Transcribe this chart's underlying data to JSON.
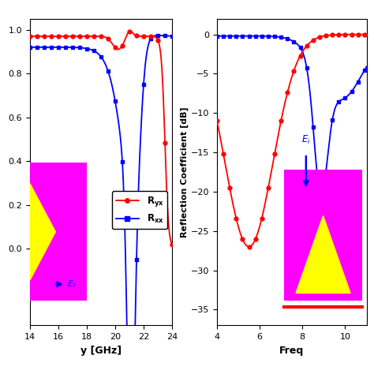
{
  "left_panel": {
    "freq_range": [
      14,
      24
    ],
    "xlabel": "y [GHz]",
    "ylim": [
      -0.35,
      1.05
    ],
    "yticks": [
      0.0,
      0.2,
      0.4,
      0.6,
      0.8,
      1.0
    ],
    "xticks": [
      14,
      16,
      18,
      20,
      22,
      24
    ]
  },
  "right_panel": {
    "freq_range": [
      4,
      11
    ],
    "xlabel": "Freq",
    "ylabel": "Reflection Coefficient [dB]",
    "ylim": [
      -37,
      2
    ],
    "yticks": [
      0,
      -5,
      -10,
      -15,
      -20,
      -25,
      -30,
      -35
    ],
    "xticks": [
      4,
      6,
      8,
      10
    ]
  },
  "colors": {
    "red": "#FF0000",
    "blue": "#0000FF",
    "magenta": "#FF00FF",
    "yellow": "#FFFF00"
  }
}
